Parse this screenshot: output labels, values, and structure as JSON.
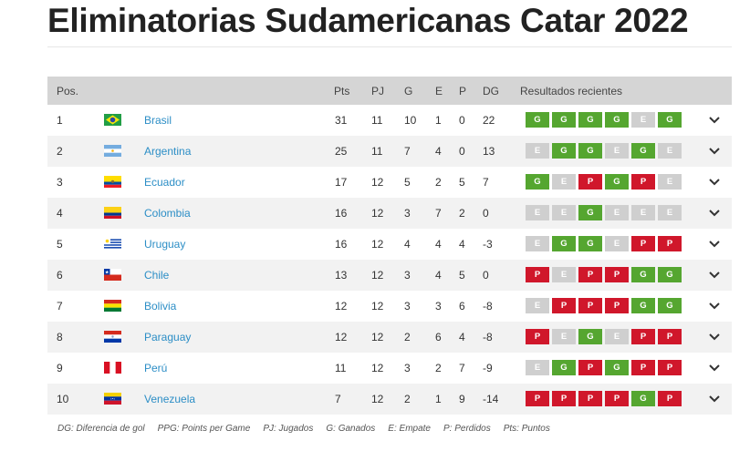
{
  "title": "Eliminatorias Sudamericanas Catar 2022",
  "headers": {
    "pos": "Pos.",
    "pts": "Pts",
    "pj": "PJ",
    "g": "G",
    "e": "E",
    "p": "P",
    "dg": "DG",
    "recent": "Resultados recientes"
  },
  "colors": {
    "win": "#55a630",
    "draw": "#cfcfcf",
    "loss": "#d0172b",
    "team_link": "#2c8ec6",
    "header_bg": "#d5d5d5"
  },
  "rows": [
    {
      "pos": "1",
      "flag": "brazil-flag",
      "team": "Brasil",
      "pts": "31",
      "pj": "11",
      "g": "10",
      "e": "1",
      "p": "0",
      "dg": "22",
      "form": [
        "G",
        "G",
        "G",
        "G",
        "E",
        "G"
      ]
    },
    {
      "pos": "2",
      "flag": "argentina-flag",
      "team": "Argentina",
      "pts": "25",
      "pj": "11",
      "g": "7",
      "e": "4",
      "p": "0",
      "dg": "13",
      "form": [
        "E",
        "G",
        "G",
        "E",
        "G",
        "E"
      ]
    },
    {
      "pos": "3",
      "flag": "ecuador-flag",
      "team": "Ecuador",
      "pts": "17",
      "pj": "12",
      "g": "5",
      "e": "2",
      "p": "5",
      "dg": "7",
      "form": [
        "G",
        "E",
        "P",
        "G",
        "P",
        "E"
      ]
    },
    {
      "pos": "4",
      "flag": "colombia-flag",
      "team": "Colombia",
      "pts": "16",
      "pj": "12",
      "g": "3",
      "e": "7",
      "p": "2",
      "dg": "0",
      "form": [
        "E",
        "E",
        "G",
        "E",
        "E",
        "E"
      ]
    },
    {
      "pos": "5",
      "flag": "uruguay-flag",
      "team": "Uruguay",
      "pts": "16",
      "pj": "12",
      "g": "4",
      "e": "4",
      "p": "4",
      "dg": "-3",
      "form": [
        "E",
        "G",
        "G",
        "E",
        "P",
        "P"
      ]
    },
    {
      "pos": "6",
      "flag": "chile-flag",
      "team": "Chile",
      "pts": "13",
      "pj": "12",
      "g": "3",
      "e": "4",
      "p": "5",
      "dg": "0",
      "form": [
        "P",
        "E",
        "P",
        "P",
        "G",
        "G"
      ]
    },
    {
      "pos": "7",
      "flag": "bolivia-flag",
      "team": "Bolivia",
      "pts": "12",
      "pj": "12",
      "g": "3",
      "e": "3",
      "p": "6",
      "dg": "-8",
      "form": [
        "E",
        "P",
        "P",
        "P",
        "G",
        "G"
      ]
    },
    {
      "pos": "8",
      "flag": "paraguay-flag",
      "team": "Paraguay",
      "pts": "12",
      "pj": "12",
      "g": "2",
      "e": "6",
      "p": "4",
      "dg": "-8",
      "form": [
        "P",
        "E",
        "G",
        "E",
        "P",
        "P"
      ]
    },
    {
      "pos": "9",
      "flag": "peru-flag",
      "team": "Perú",
      "pts": "11",
      "pj": "12",
      "g": "3",
      "e": "2",
      "p": "7",
      "dg": "-9",
      "form": [
        "E",
        "G",
        "P",
        "G",
        "P",
        "P"
      ]
    },
    {
      "pos": "10",
      "flag": "venezuela-flag",
      "team": "Venezuela",
      "pts": "7",
      "pj": "12",
      "g": "2",
      "e": "1",
      "p": "9",
      "dg": "-14",
      "form": [
        "P",
        "P",
        "P",
        "P",
        "G",
        "P"
      ]
    }
  ],
  "legend": [
    "DG: Diferencia de gol",
    "PPG: Points per Game",
    "PJ: Jugados",
    "G: Ganados",
    "E: Empate",
    "P: Perdidos",
    "Pts: Puntos"
  ]
}
